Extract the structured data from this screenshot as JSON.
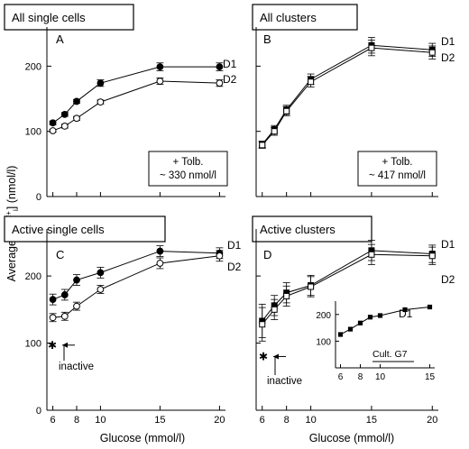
{
  "figure": {
    "ylabel_prefix": "Average [Ca",
    "ylabel_sup": "2+",
    "ylabel_sub": "i",
    "ylabel_suffix": "] (nmol/l)",
    "xlabel_left": "Glucose (mmol/l)",
    "xlabel_right": "Glucose (mmol/l)"
  },
  "chart_data": [
    {
      "id": "A",
      "type": "line",
      "panel_letter": "A",
      "header": "All single cells",
      "x_ticks": [],
      "y_ticks": [
        0,
        100,
        200
      ],
      "xlim": [
        5.5,
        20.5
      ],
      "ylim": [
        0,
        260
      ],
      "annotation_lines": [
        "+ Tolb.",
        "~ 330 nmol/l"
      ],
      "series": [
        {
          "name": "D1",
          "marker": "filled-circle",
          "x": [
            6,
            7,
            8,
            10,
            15,
            20
          ],
          "y": [
            113,
            126,
            146,
            174,
            199,
            199
          ],
          "err": [
            3,
            3,
            3,
            5,
            6,
            6
          ]
        },
        {
          "name": "D2",
          "marker": "open-circle",
          "x": [
            6,
            7,
            8,
            10,
            15,
            20
          ],
          "y": [
            101,
            108,
            120,
            145,
            177,
            174
          ],
          "err": [
            2,
            3,
            3,
            3,
            5,
            5
          ]
        }
      ]
    },
    {
      "id": "B",
      "type": "line",
      "panel_letter": "B",
      "header": "All clusters",
      "x_ticks": [],
      "y_ticks": [],
      "xlim": [
        5.5,
        20.5
      ],
      "ylim": [
        0,
        260
      ],
      "annotation_lines": [
        "+ Tolb.",
        "~ 417 nmol/l"
      ],
      "series": [
        {
          "name": "D1",
          "marker": "filled-square",
          "x": [
            6,
            7,
            8,
            10,
            15,
            20
          ],
          "y": [
            80,
            103,
            133,
            180,
            232,
            225
          ],
          "err": [
            5,
            6,
            7,
            8,
            12,
            10
          ]
        },
        {
          "name": "D2",
          "marker": "open-square",
          "x": [
            6,
            7,
            8,
            10,
            15,
            20
          ],
          "y": [
            79,
            100,
            131,
            176,
            228,
            221
          ],
          "err": [
            5,
            6,
            7,
            8,
            12,
            10
          ]
        }
      ]
    },
    {
      "id": "C",
      "type": "line",
      "panel_letter": "C",
      "header": "Active single cells",
      "x_ticks": [
        6,
        8,
        10,
        15,
        20
      ],
      "y_ticks": [
        0,
        100,
        200
      ],
      "xlim": [
        5.5,
        20.5
      ],
      "ylim": [
        0,
        270
      ],
      "inactive_label": "inactive",
      "inactive_y": 97,
      "series": [
        {
          "name": "D1",
          "marker": "filled-circle",
          "x": [
            6,
            7,
            8,
            10,
            15,
            20
          ],
          "y": [
            165,
            172,
            194,
            205,
            237,
            234
          ],
          "err": [
            8,
            8,
            8,
            8,
            8,
            8
          ]
        },
        {
          "name": "D2",
          "marker": "open-circle",
          "x": [
            6,
            7,
            8,
            10,
            15,
            20
          ],
          "y": [
            138,
            140,
            155,
            180,
            219,
            230
          ],
          "err": [
            6,
            6,
            6,
            6,
            8,
            8
          ]
        }
      ]
    },
    {
      "id": "D",
      "type": "line",
      "panel_letter": "D",
      "header": "Active clusters",
      "x_ticks": [
        6,
        8,
        10,
        15,
        20
      ],
      "y_ticks": [],
      "xlim": [
        5.5,
        20.5
      ],
      "ylim": [
        0,
        270
      ],
      "inactive_label": "inactive",
      "inactive_y": 80,
      "series": [
        {
          "name": "D1",
          "marker": "filled-square",
          "x": [
            6,
            7,
            8,
            10,
            15,
            20
          ],
          "y": [
            133,
            156,
            175,
            186,
            238,
            233
          ],
          "err": [
            25,
            15,
            15,
            15,
            15,
            13
          ]
        },
        {
          "name": "D2",
          "marker": "open-square",
          "x": [
            6,
            7,
            8,
            10,
            15,
            20
          ],
          "y": [
            128,
            150,
            170,
            184,
            232,
            230
          ],
          "err": [
            25,
            15,
            15,
            15,
            15,
            13
          ]
        }
      ],
      "inset": {
        "type": "line",
        "label": "Cult. G7",
        "x_ticks": [
          6,
          8,
          10,
          15
        ],
        "y_ticks": [
          100,
          200
        ],
        "xlim": [
          5.5,
          15.5
        ],
        "ylim": [
          0,
          250
        ],
        "series": [
          {
            "name": "D1",
            "marker": "filled-square",
            "x": [
              6,
              7,
              8,
              9,
              10,
              12.5,
              15
            ],
            "y": [
              125,
              145,
              168,
              190,
              196,
              218,
              228
            ]
          }
        ]
      }
    }
  ]
}
